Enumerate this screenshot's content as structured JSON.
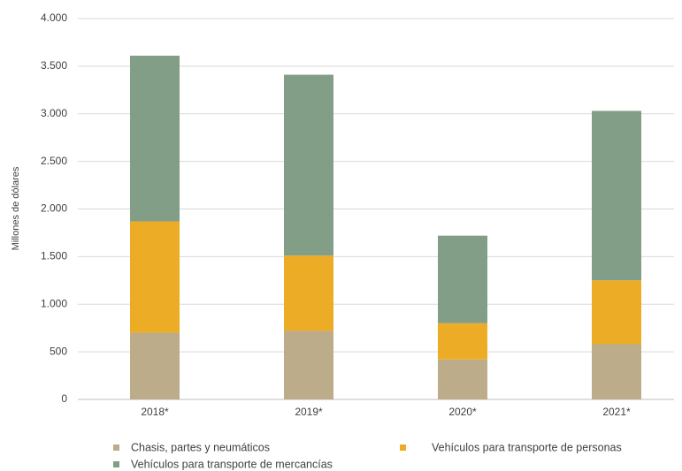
{
  "chart_data": {
    "type": "stacked_bar",
    "y_label": "Millones de dólares",
    "categories": [
      "2018*",
      "2019*",
      "2020*",
      "2021*"
    ],
    "series": [
      {
        "name": "Chasis, partes y neumáticos",
        "color": "#bcac8a",
        "values": [
          700,
          720,
          420,
          580
        ]
      },
      {
        "name": "Vehículos para transporte de personas",
        "color": "#edac26",
        "values": [
          1170,
          790,
          380,
          670
        ]
      },
      {
        "name": "Vehículos para transporte de mercancías",
        "color": "#839e87",
        "values": [
          1740,
          1900,
          920,
          1780
        ]
      }
    ],
    "ylim": [
      0,
      4000
    ],
    "yticks": [
      0,
      500,
      {
        "value": 1000,
        "label": "1.000"
      },
      {
        "value": 1500,
        "label": "1.500"
      },
      {
        "value": 2000,
        "label": "2.000"
      },
      {
        "value": 2500,
        "label": "2.500"
      },
      {
        "value": 3000,
        "label": "3.000"
      },
      {
        "value": 3500,
        "label": "3.500"
      },
      {
        "value": 4000,
        "label": "4.000"
      }
    ],
    "grid": true
  }
}
